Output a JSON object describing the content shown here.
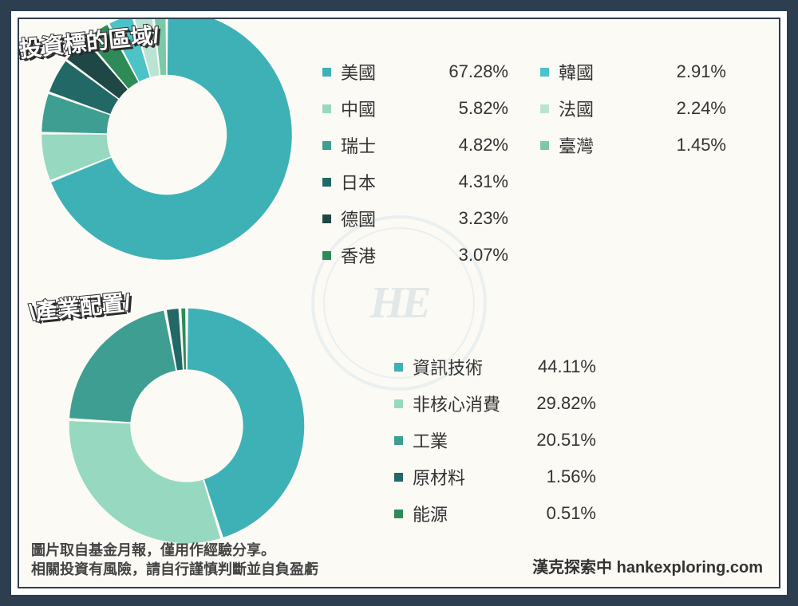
{
  "frame": {
    "outer_color": "#2c3e50",
    "inner_bg": "#fcfaf5"
  },
  "watermark": {
    "text": "HE",
    "circle_color": "#d9e6ea",
    "text_color": "#c9d6db"
  },
  "title1": "\\投資標的區域/",
  "title2": "\\產業配置/",
  "chart1": {
    "type": "donut",
    "inner_radius_ratio": 0.48,
    "gap_deg": 1.2,
    "slices": [
      {
        "label": "美國",
        "value": 67.28,
        "color": "#3eb1b6"
      },
      {
        "label": "中國",
        "value": 5.82,
        "color": "#97d8c0"
      },
      {
        "label": "瑞士",
        "value": 4.82,
        "color": "#3f9e92"
      },
      {
        "label": "日本",
        "value": 4.31,
        "color": "#216866"
      },
      {
        "label": "德國",
        "value": 3.23,
        "color": "#1f4745"
      },
      {
        "label": "香港",
        "value": 3.07,
        "color": "#2e8b57"
      },
      {
        "label": "韓國",
        "value": 2.91,
        "color": "#4cc3c7"
      },
      {
        "label": "法國",
        "value": 2.24,
        "color": "#b9e4d2"
      },
      {
        "label": "臺灣",
        "value": 1.45,
        "color": "#7cc9a8"
      }
    ]
  },
  "chart2": {
    "type": "donut",
    "inner_radius_ratio": 0.48,
    "gap_deg": 1.5,
    "slices": [
      {
        "label": "資訊技術",
        "value": 44.11,
        "color": "#3eb1b6"
      },
      {
        "label": "非核心消費",
        "value": 29.82,
        "color": "#97d8c0"
      },
      {
        "label": "工業",
        "value": 20.51,
        "color": "#3f9e92"
      },
      {
        "label": "原材料",
        "value": 1.56,
        "color": "#216866"
      },
      {
        "label": "能源",
        "value": 0.51,
        "color": "#2e8b57"
      }
    ]
  },
  "disclaimer_line1": "圖片取自基金月報，僅用作經驗分享。",
  "disclaimer_line2": "相關投資有風險，請自行謹慎判斷並自負盈虧",
  "site": "漢克探索中 hankexploring.com",
  "text_color": "#333333",
  "label_fontsize": 22
}
